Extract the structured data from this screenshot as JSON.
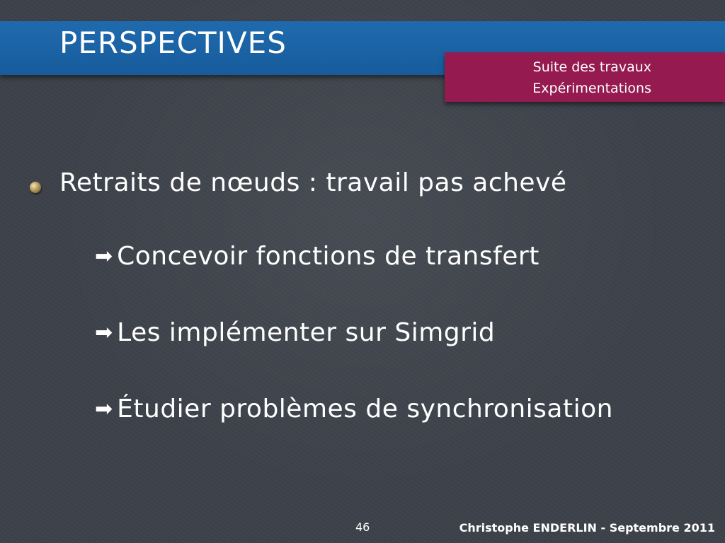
{
  "slide": {
    "title": "PERSPECTIVES",
    "section": {
      "line1": "Suite des travaux",
      "line2": "Expérimentations"
    },
    "bullet": {
      "text": "Retraits de nœuds : travail pas achevé",
      "icon": "bullet-dot-icon"
    },
    "sub_items": [
      {
        "arrow": "➡",
        "text": "Concevoir fonctions de transfert"
      },
      {
        "arrow": "➡",
        "text": "Les implémenter sur Simgrid"
      },
      {
        "arrow": "➡",
        "text": "Étudier problèmes de synchronisation"
      }
    ],
    "page_number": "46",
    "footer": "Christophe ENDERLIN  - Septembre 2011"
  },
  "colors": {
    "background": "#3d424a",
    "title_bar": "#1f6aae",
    "section_box": "#951a50",
    "text": "#ffffff"
  }
}
